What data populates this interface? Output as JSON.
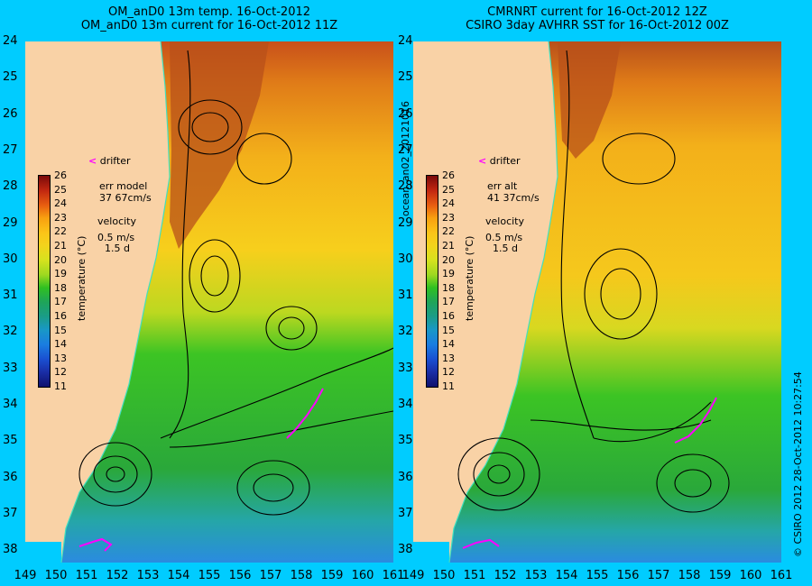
{
  "titles": {
    "left": "OM_anD0 13m temp. 16-Oct-2012\nOM_anD0 13m current for 16-Oct-2012 11Z",
    "right": "CMRNRT current for 16-Oct-2012 12Z\nCSIRO 3day AVHRR SST for 16-Oct-2012 00Z"
  },
  "y_axis_labels": [
    "24",
    "25",
    "26",
    "27",
    "28",
    "29",
    "30",
    "31",
    "32",
    "33",
    "34",
    "35",
    "36",
    "37",
    "38"
  ],
  "x_axis_labels": [
    "149",
    "150",
    "151",
    "152",
    "153",
    "154",
    "155",
    "156",
    "157",
    "158",
    "159",
    "160",
    "161"
  ],
  "colorbar": {
    "ticks": [
      "26",
      "25",
      "24",
      "23",
      "22",
      "21",
      "20",
      "19",
      "18",
      "17",
      "16",
      "15",
      "14",
      "13",
      "12",
      "11"
    ],
    "unit_label": "temperature (°C)"
  },
  "left_panel": {
    "drifter_label": "drifter",
    "err_line1": "err model",
    "err_line2": "37 67cm/s",
    "velocity_title": "velocity",
    "velocity_scale": "0.5 m/s",
    "velocity_time": "1.5 d"
  },
  "right_panel": {
    "drifter_label": "drifter",
    "err_line1": "err alt",
    "err_line2": "41 37cm/s",
    "velocity_title": "velocity",
    "velocity_scale": "0.5 m/s",
    "velocity_time": "1.5 d"
  },
  "side_labels": {
    "middle": "ocean_an02_20121016",
    "right": "© CSIRO 2012   28-Oct-2012 10:27:54"
  },
  "colors": {
    "background": "#00ccff",
    "land": "#f9d2a6",
    "drifter": "#ff00ff",
    "coast_line": "#40e0c0"
  }
}
